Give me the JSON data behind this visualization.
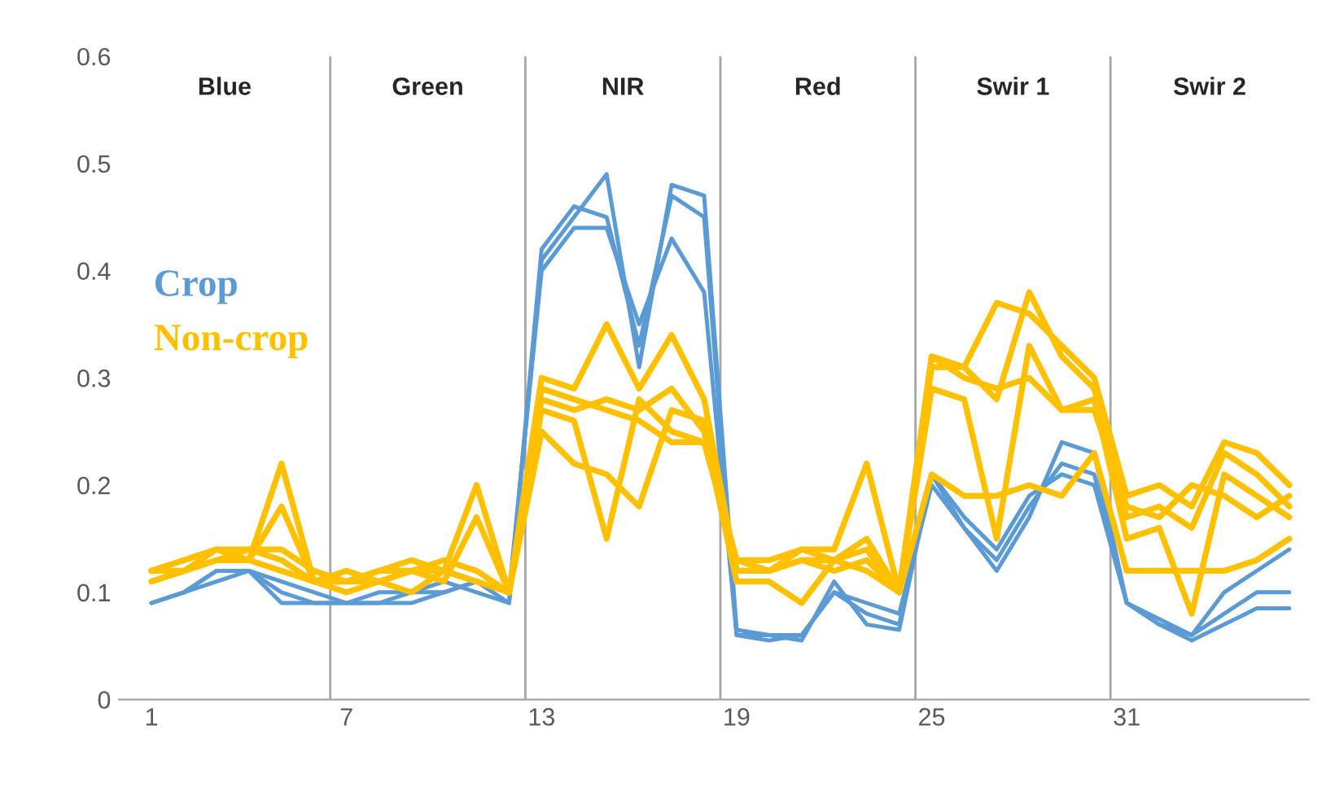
{
  "chart_data": {
    "type": "line",
    "x": [
      1,
      2,
      3,
      4,
      5,
      6,
      7,
      8,
      9,
      10,
      11,
      12,
      13,
      14,
      15,
      16,
      17,
      18,
      19,
      20,
      21,
      22,
      23,
      24,
      25,
      26,
      27,
      28,
      29,
      30,
      31,
      32,
      33,
      34,
      35,
      36
    ],
    "series": [
      {
        "name": "Crop",
        "color": "#5b9bd5",
        "values": [
          0.09,
          0.1,
          0.12,
          0.12,
          0.1,
          0.09,
          0.09,
          0.09,
          0.1,
          0.1,
          0.11,
          0.09,
          0.42,
          0.46,
          0.45,
          0.33,
          0.47,
          0.45,
          0.06,
          0.06,
          0.055,
          0.11,
          0.07,
          0.065,
          0.21,
          0.16,
          0.12,
          0.17,
          0.24,
          0.23,
          0.09,
          0.07,
          0.06,
          0.08,
          0.1,
          0.1
        ]
      },
      {
        "color": "#5b9bd5",
        "values": [
          0.09,
          0.1,
          0.11,
          0.12,
          0.11,
          0.1,
          0.09,
          0.1,
          0.1,
          0.11,
          0.1,
          0.09,
          0.41,
          0.45,
          0.49,
          0.31,
          0.48,
          0.47,
          0.065,
          0.06,
          0.06,
          0.1,
          0.08,
          0.07,
          0.21,
          0.17,
          0.14,
          0.19,
          0.21,
          0.2,
          0.09,
          0.07,
          0.055,
          0.07,
          0.085,
          0.085
        ]
      },
      {
        "color": "#5b9bd5",
        "values": [
          0.09,
          0.1,
          0.12,
          0.12,
          0.09,
          0.09,
          0.09,
          0.09,
          0.09,
          0.1,
          0.11,
          0.1,
          0.4,
          0.44,
          0.44,
          0.35,
          0.43,
          0.38,
          0.06,
          0.055,
          0.06,
          0.1,
          0.09,
          0.08,
          0.2,
          0.16,
          0.13,
          0.18,
          0.22,
          0.21,
          0.09,
          0.075,
          0.06,
          0.1,
          0.12,
          0.14
        ]
      },
      {
        "name": "Non-crop",
        "color": "#ffc000",
        "values": [
          0.12,
          0.13,
          0.14,
          0.13,
          0.22,
          0.11,
          0.11,
          0.11,
          0.12,
          0.12,
          0.2,
          0.1,
          0.3,
          0.29,
          0.35,
          0.29,
          0.34,
          0.28,
          0.12,
          0.12,
          0.14,
          0.14,
          0.22,
          0.1,
          0.32,
          0.31,
          0.37,
          0.36,
          0.33,
          0.3,
          0.19,
          0.2,
          0.18,
          0.24,
          0.23,
          0.2
        ]
      },
      {
        "color": "#ffc000",
        "values": [
          0.11,
          0.12,
          0.13,
          0.14,
          0.13,
          0.11,
          0.11,
          0.12,
          0.13,
          0.12,
          0.11,
          0.1,
          0.28,
          0.27,
          0.28,
          0.27,
          0.29,
          0.25,
          0.11,
          0.11,
          0.09,
          0.13,
          0.12,
          0.1,
          0.31,
          0.31,
          0.28,
          0.38,
          0.32,
          0.29,
          0.17,
          0.18,
          0.16,
          0.23,
          0.21,
          0.18
        ]
      },
      {
        "color": "#ffc000",
        "values": [
          0.12,
          0.12,
          0.14,
          0.13,
          0.18,
          0.11,
          0.12,
          0.11,
          0.12,
          0.11,
          0.17,
          0.1,
          0.27,
          0.26,
          0.15,
          0.28,
          0.25,
          0.24,
          0.13,
          0.13,
          0.14,
          0.13,
          0.14,
          0.1,
          0.29,
          0.28,
          0.15,
          0.33,
          0.27,
          0.28,
          0.15,
          0.16,
          0.08,
          0.21,
          0.19,
          0.17
        ]
      },
      {
        "color": "#ffc000",
        "values": [
          0.11,
          0.12,
          0.13,
          0.13,
          0.12,
          0.11,
          0.1,
          0.11,
          0.1,
          0.12,
          0.11,
          0.1,
          0.25,
          0.22,
          0.21,
          0.18,
          0.27,
          0.26,
          0.12,
          0.12,
          0.13,
          0.12,
          0.13,
          0.1,
          0.21,
          0.19,
          0.19,
          0.2,
          0.19,
          0.23,
          0.12,
          0.12,
          0.12,
          0.12,
          0.13,
          0.15
        ]
      },
      {
        "color": "#ffc000",
        "values": [
          0.12,
          0.13,
          0.14,
          0.14,
          0.14,
          0.12,
          0.11,
          0.12,
          0.12,
          0.13,
          0.12,
          0.1,
          0.29,
          0.28,
          0.27,
          0.26,
          0.24,
          0.24,
          0.13,
          0.12,
          0.13,
          0.13,
          0.15,
          0.1,
          0.32,
          0.3,
          0.29,
          0.3,
          0.27,
          0.27,
          0.18,
          0.17,
          0.2,
          0.19,
          0.17,
          0.19
        ]
      }
    ],
    "xlim": [
      0,
      36.6
    ],
    "xticks": [
      1,
      7,
      13,
      19,
      25,
      31
    ],
    "ylim": [
      0,
      0.6
    ],
    "yticks": [
      0,
      0.1,
      0.2,
      0.3,
      0.4,
      0.5,
      0.6
    ],
    "ref_lines": [
      {
        "axis": "x",
        "value": 6.5,
        "color": "#a6a6a6"
      },
      {
        "axis": "x",
        "value": 12.5,
        "color": "#a6a6a6"
      },
      {
        "axis": "x",
        "value": 18.5,
        "color": "#a6a6a6"
      },
      {
        "axis": "x",
        "value": 24.5,
        "color": "#a6a6a6"
      },
      {
        "axis": "x",
        "value": 30.5,
        "color": "#a6a6a6"
      }
    ],
    "annotations": [
      "Blue",
      "Green",
      "NIR",
      "Red",
      "Swir 1",
      "Swir 2"
    ],
    "legend": "left",
    "grid": false,
    "marker": "none",
    "line_style": "solid"
  }
}
